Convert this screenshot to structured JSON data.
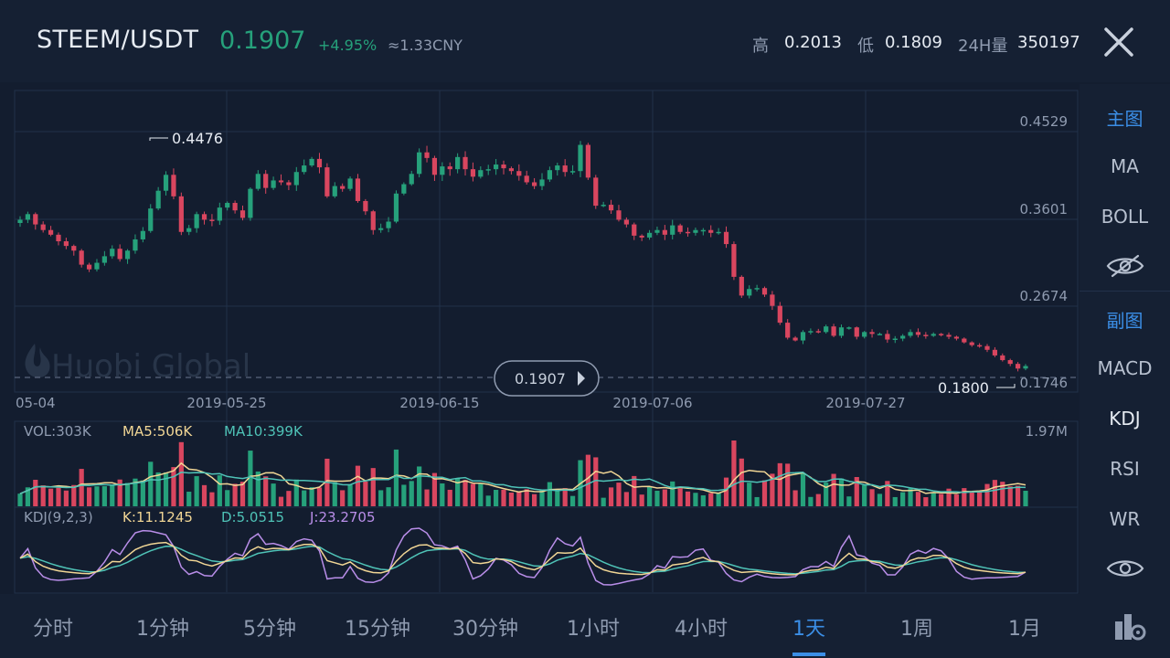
{
  "header": {
    "pair": "STEEM/USDT",
    "price": "0.1907",
    "change": "+4.95%",
    "cny": "≈1.33CNY",
    "high_label": "高",
    "high_value": "0.2013",
    "low_label": "低",
    "low_value": "0.1809",
    "vol_label": "24H量",
    "vol_value": "350197"
  },
  "watermark": "Huobi Global",
  "chart_data": [
    {
      "type": "candlestick",
      "x_tick_labels": [
        "05-04",
        "2019-05-25",
        "2019-06-15",
        "2019-07-06",
        "2019-07-27"
      ],
      "y_tick_labels": [
        "0.4529",
        "0.3601",
        "0.2674",
        "0.1746"
      ],
      "ylim": [
        0.1746,
        0.4529
      ],
      "max_label": "0.4476",
      "min_label": "0.1800",
      "current_price_label": "0.1907",
      "current_price": 0.1907,
      "closes": [
        0.347,
        0.353,
        0.342,
        0.336,
        0.331,
        0.324,
        0.319,
        0.314,
        0.299,
        0.294,
        0.301,
        0.308,
        0.316,
        0.305,
        0.314,
        0.326,
        0.335,
        0.359,
        0.378,
        0.395,
        0.372,
        0.334,
        0.338,
        0.353,
        0.347,
        0.346,
        0.36,
        0.365,
        0.357,
        0.349,
        0.38,
        0.396,
        0.381,
        0.389,
        0.387,
        0.384,
        0.398,
        0.405,
        0.412,
        0.403,
        0.372,
        0.383,
        0.38,
        0.391,
        0.367,
        0.356,
        0.336,
        0.338,
        0.345,
        0.375,
        0.385,
        0.396,
        0.419,
        0.413,
        0.395,
        0.404,
        0.401,
        0.414,
        0.401,
        0.393,
        0.4,
        0.401,
        0.406,
        0.402,
        0.399,
        0.394,
        0.387,
        0.383,
        0.39,
        0.4,
        0.405,
        0.398,
        0.399,
        0.427,
        0.392,
        0.362,
        0.363,
        0.357,
        0.347,
        0.342,
        0.33,
        0.328,
        0.333,
        0.336,
        0.331,
        0.341,
        0.334,
        0.333,
        0.336,
        0.336,
        0.333,
        0.334,
        0.321,
        0.286,
        0.266,
        0.273,
        0.274,
        0.267,
        0.255,
        0.237,
        0.221,
        0.218,
        0.227,
        0.228,
        0.227,
        0.233,
        0.223,
        0.232,
        0.232,
        0.222,
        0.227,
        0.225,
        0.225,
        0.219,
        0.22,
        0.223,
        0.227,
        0.224,
        0.223,
        0.225,
        0.224,
        0.222,
        0.22,
        0.216,
        0.213,
        0.212,
        0.208,
        0.202,
        0.197,
        0.193,
        0.188,
        0.1907
      ],
      "vol_label": "VOL:303K",
      "ma5_label": "MA5:506K",
      "ma10_label": "MA10:399K",
      "vol_max_label": "1.97M",
      "kdj_label": "KDJ(9,2,3)",
      "k_label": "K:11.1245",
      "d_label": "D:5.0515",
      "j_label": "J:23.2705",
      "colors": {
        "up": "#26a17b",
        "down": "#d9465f",
        "ma5": "#f1d695",
        "ma10": "#4fc3b7",
        "j": "#b98ee9",
        "grid": "#22314a"
      }
    }
  ],
  "sidebar": {
    "main_label": "主图",
    "ma": "MA",
    "boll": "BOLL",
    "sub_label": "副图",
    "macd": "MACD",
    "kdj": "KDJ",
    "rsi": "RSI",
    "wr": "WR"
  },
  "tabs": [
    "分时",
    "1分钟",
    "5分钟",
    "15分钟",
    "30分钟",
    "1小时",
    "4小时",
    "1天",
    "1周",
    "1月"
  ]
}
